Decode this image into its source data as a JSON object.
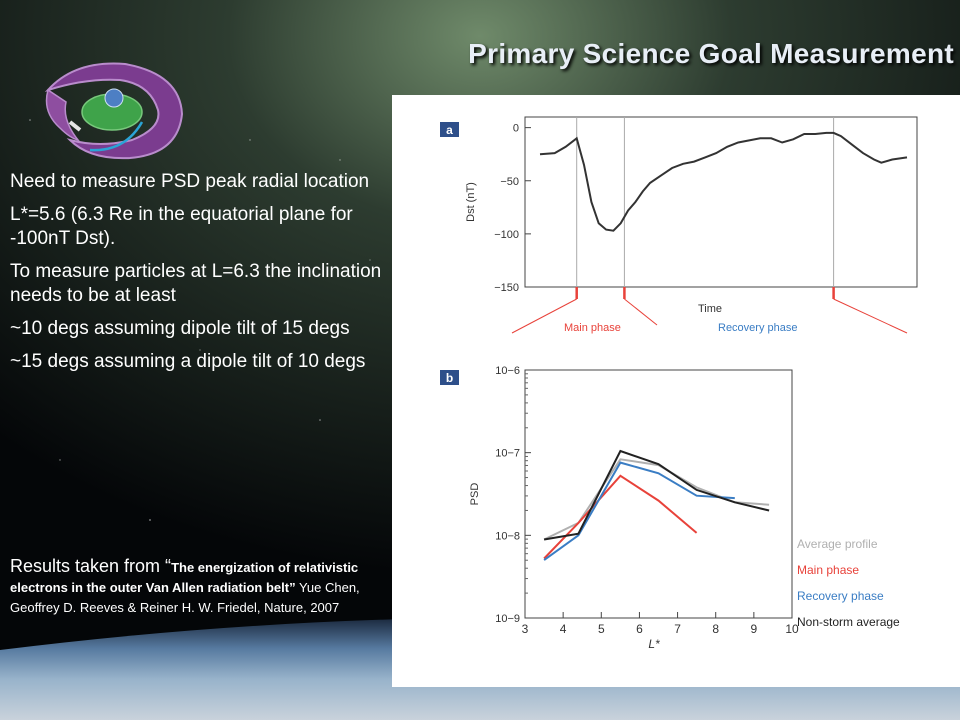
{
  "slide": {
    "title": "Primary Science Goal Measurement",
    "bullets": [
      "Need to measure PSD peak radial location",
      "L*=5.6 (6.3 Re in the equatorial plane for -100nT Dst).",
      "To measure particles at L=6.3 the inclination needs to be at least",
      "~10 degs assuming dipole tilt of 15 degs",
      "~15 degs assuming a dipole tilt of 10 degs"
    ],
    "citation": {
      "lead": "Results taken from “",
      "paper_title": "The energization of relativistic electrons in the outer Van Allen radiation belt”",
      "authors": " Yue Chen, Geoffrey D. Reeves & Reiner H. W. Friedel, Nature, 2007"
    }
  },
  "colors": {
    "title": "#e8eef6",
    "main_phase": "#e8423a",
    "recovery_phase": "#3a7dc4",
    "panel_label_bg": "#2e4f8a"
  },
  "chart_data": [
    {
      "panel_label": "a",
      "type": "line",
      "ylabel": "Dst (nT)",
      "xlabel": "Time",
      "ylim": [
        -150,
        10
      ],
      "yticks": [
        0,
        -50,
        -100,
        -150
      ],
      "x_normalized": [
        0.0,
        0.04,
        0.07,
        0.1,
        0.12,
        0.14,
        0.16,
        0.18,
        0.2,
        0.22,
        0.24,
        0.26,
        0.28,
        0.3,
        0.33,
        0.36,
        0.39,
        0.42,
        0.45,
        0.48,
        0.51,
        0.54,
        0.57,
        0.6,
        0.63,
        0.66,
        0.69,
        0.72,
        0.75,
        0.78,
        0.8,
        0.82,
        0.85,
        0.88,
        0.91,
        0.93,
        0.96,
        1.0
      ],
      "values": [
        -25,
        -24,
        -18,
        -10,
        -35,
        -70,
        -90,
        -96,
        -97,
        -90,
        -78,
        -70,
        -60,
        -52,
        -45,
        -38,
        -34,
        -32,
        -28,
        -24,
        -18,
        -14,
        -12,
        -10,
        -10,
        -14,
        -11,
        -6,
        -6,
        -5,
        -5,
        -8,
        -16,
        -24,
        -30,
        -33,
        -30,
        -28
      ],
      "vlines_normalized": [
        0.1,
        0.23,
        0.8
      ],
      "annotations": [
        {
          "text": "Main phase",
          "color": "#e8423a"
        },
        {
          "text": "Recovery phase",
          "color": "#3a7dc4"
        }
      ]
    },
    {
      "panel_label": "b",
      "type": "line",
      "ylabel": "PSD",
      "xlabel": "L*",
      "xlim": [
        3,
        10
      ],
      "xticks": [
        3,
        4,
        5,
        6,
        7,
        8,
        9,
        10
      ],
      "yscale": "log",
      "ylim_exponent": [
        -9,
        -6
      ],
      "yticks": [
        "10−6",
        "10−7",
        "10−8",
        "10−9"
      ],
      "legend": "right",
      "series": [
        {
          "name": "Average profile",
          "color": "#b0b0b0",
          "x": [
            3.5,
            4.4,
            5.5,
            6.5,
            7.5,
            8.5,
            9.4
          ],
          "log10_y": [
            -8.05,
            -7.85,
            -7.08,
            -7.15,
            -7.42,
            -7.6,
            -7.63
          ]
        },
        {
          "name": "Main phase",
          "color": "#e8423a",
          "x": [
            3.5,
            4.4,
            5.5,
            6.5,
            7.5
          ],
          "log10_y": [
            -8.28,
            -7.85,
            -7.28,
            -7.58,
            -7.97
          ]
        },
        {
          "name": "Recovery phase",
          "color": "#3a7dc4",
          "x": [
            3.5,
            4.4,
            5.5,
            6.5,
            7.5,
            8.5
          ],
          "log10_y": [
            -8.3,
            -8.0,
            -7.12,
            -7.25,
            -7.52,
            -7.55
          ]
        },
        {
          "name": "Non-storm average",
          "color": "#222222",
          "x": [
            3.5,
            4.4,
            5.5,
            6.5,
            7.5,
            8.5,
            9.4
          ],
          "log10_y": [
            -8.05,
            -7.98,
            -6.98,
            -7.14,
            -7.45,
            -7.6,
            -7.7
          ]
        }
      ]
    }
  ]
}
